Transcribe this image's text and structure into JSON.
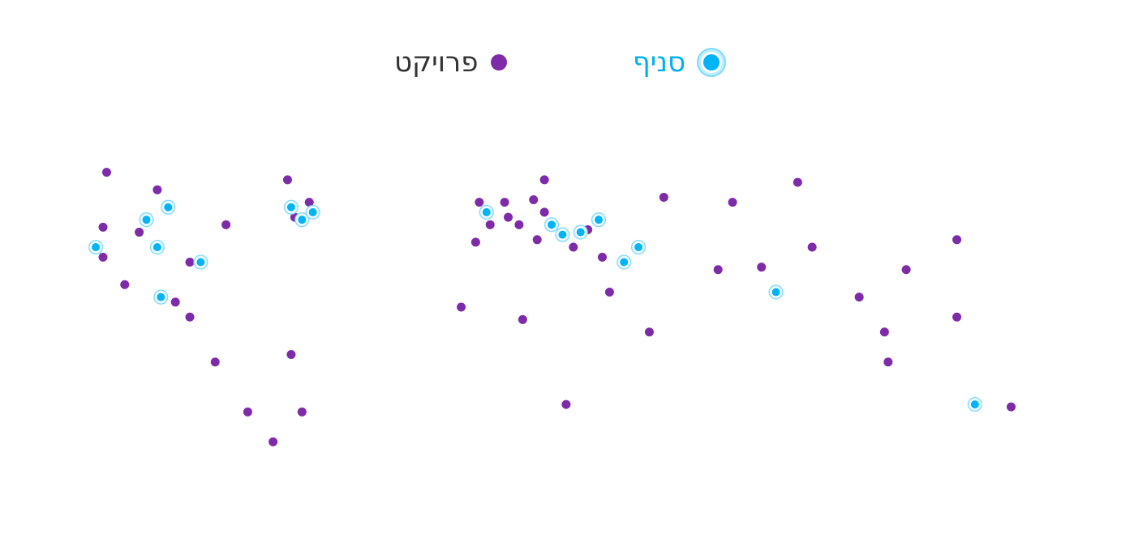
{
  "legend": {
    "branch": {
      "label": "סניף",
      "color": "#00b0f0",
      "icon": "branch-marker-icon"
    },
    "project": {
      "label": "פרויקט",
      "color": "#7e2ba9",
      "icon": "project-dot-icon"
    }
  },
  "map_data": {
    "projects": [
      [
        -99,
        67
      ],
      [
        -85,
        60
      ],
      [
        -100,
        45
      ],
      [
        -90,
        43
      ],
      [
        -100,
        33
      ],
      [
        -94,
        22
      ],
      [
        -76,
        31
      ],
      [
        -66,
        46
      ],
      [
        -80,
        15
      ],
      [
        -76,
        9
      ],
      [
        -69,
        -9
      ],
      [
        -60,
        -29
      ],
      [
        -53,
        -41
      ],
      [
        -45,
        -29
      ],
      [
        -48,
        -6
      ],
      [
        -49,
        64
      ],
      [
        -43,
        55
      ],
      [
        -47,
        49
      ],
      [
        4,
        55
      ],
      [
        11,
        55
      ],
      [
        12,
        49
      ],
      [
        7,
        46
      ],
      [
        15,
        46
      ],
      [
        3,
        39
      ],
      [
        19,
        56
      ],
      [
        22,
        64
      ],
      [
        22,
        51
      ],
      [
        20,
        40
      ],
      [
        30,
        37
      ],
      [
        34,
        44
      ],
      [
        38,
        33
      ],
      [
        40,
        19
      ],
      [
        51,
        3
      ],
      [
        55,
        57
      ],
      [
        -1,
        13
      ],
      [
        16,
        8
      ],
      [
        28,
        -26
      ],
      [
        74,
        55
      ],
      [
        92,
        63
      ],
      [
        70,
        28
      ],
      [
        82,
        29
      ],
      [
        96,
        37
      ],
      [
        122,
        28
      ],
      [
        136,
        40
      ],
      [
        109,
        17
      ],
      [
        116,
        3
      ],
      [
        117,
        -9
      ],
      [
        136,
        9
      ],
      [
        151,
        -27
      ]
    ],
    "branches": [
      [
        -102,
        37
      ],
      [
        -88,
        48
      ],
      [
        -82,
        53
      ],
      [
        -85,
        37
      ],
      [
        -73,
        31
      ],
      [
        -84,
        17
      ],
      [
        -48,
        53
      ],
      [
        -45,
        48
      ],
      [
        -42,
        51
      ],
      [
        6,
        51
      ],
      [
        24,
        46
      ],
      [
        27,
        42
      ],
      [
        32,
        43
      ],
      [
        37,
        48
      ],
      [
        48,
        37
      ],
      [
        44,
        31
      ],
      [
        86,
        19
      ],
      [
        141,
        -26
      ]
    ]
  }
}
